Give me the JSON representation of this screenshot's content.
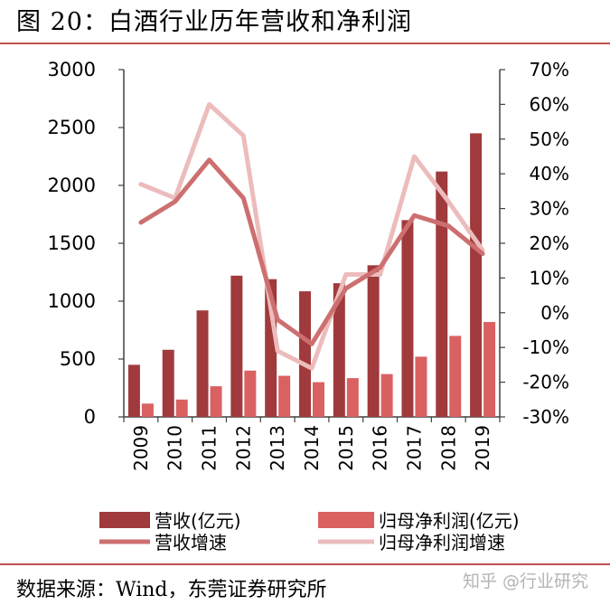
{
  "title": "图  20：白酒行业历年营收和净利润",
  "source": "数据来源：Wind，东莞证券研究所",
  "watermark": "知乎 @行业研究",
  "colors": {
    "rule": "#c0504d",
    "revenue": "#a03a3c",
    "profit": "#d96162",
    "revenue_growth": "#cd6f70",
    "profit_growth": "#ecbcbc",
    "axis": "#404040"
  },
  "chart_data": {
    "type": "bar",
    "categories": [
      "2009",
      "2010",
      "2011",
      "2012",
      "2013",
      "2014",
      "2015",
      "2016",
      "2017",
      "2018",
      "2019"
    ],
    "ylim": [
      0,
      3000
    ],
    "yticks": [
      0,
      500,
      1000,
      1500,
      2000,
      2500,
      3000
    ],
    "y2lim": [
      -0.3,
      0.7
    ],
    "y2ticks": [
      "-30%",
      "-20%",
      "-10%",
      "0%",
      "10%",
      "20%",
      "30%",
      "40%",
      "50%",
      "60%",
      "70%"
    ],
    "series": [
      {
        "name": "营收(亿元)",
        "kind": "bar",
        "axis": "left",
        "values": [
          450,
          580,
          920,
          1220,
          1190,
          1085,
          1155,
          1310,
          1700,
          2120,
          2450
        ]
      },
      {
        "name": "归母净利润(亿元)",
        "kind": "bar",
        "axis": "left",
        "values": [
          115,
          150,
          265,
          400,
          355,
          300,
          335,
          370,
          520,
          700,
          820
        ]
      },
      {
        "name": "营收增速",
        "kind": "line",
        "axis": "right",
        "values": [
          0.26,
          0.32,
          0.44,
          0.33,
          -0.02,
          -0.09,
          0.07,
          0.13,
          0.28,
          0.25,
          0.17
        ]
      },
      {
        "name": "归母净利润增速",
        "kind": "line",
        "axis": "right",
        "values": [
          0.37,
          0.33,
          0.6,
          0.51,
          -0.11,
          -0.16,
          0.11,
          0.11,
          0.45,
          0.32,
          0.18
        ]
      }
    ],
    "legend": "bottom",
    "grid": false
  }
}
